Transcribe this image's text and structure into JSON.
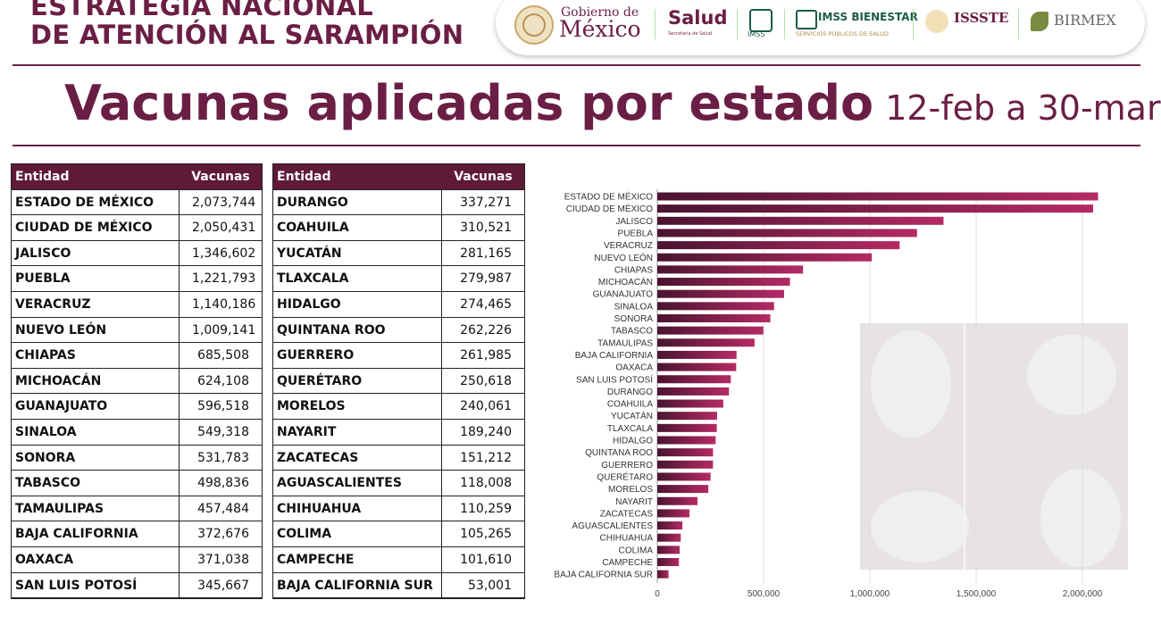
{
  "header": {
    "title_line1": "ESTRATEGIA NACIONAL",
    "title_line2": "DE ATENCIÓN AL SARAMPIÓN",
    "logos": {
      "gobierno_small": "Gobierno de",
      "gobierno_big": "México",
      "salud": "Salud",
      "salud_sub": "Secretaría de Salud",
      "imss": "IMSS",
      "imss_bienestar": "IMSS BIENESTAR",
      "imss_bienestar_sub": "SERVICIOS PÚBLICOS DE SALUD",
      "issste": "ISSSTE",
      "birmex": "BIRMEX"
    }
  },
  "title": "Vacunas aplicadas por estado",
  "subtitle": "12-feb a 30-mar",
  "tables": [
    {
      "columns": [
        "Entidad",
        "Vacunas"
      ],
      "rows": [
        [
          "ESTADO DE MÉXICO",
          "2,073,744"
        ],
        [
          "CIUDAD DE MÉXICO",
          "2,050,431"
        ],
        [
          "JALISCO",
          "1,346,602"
        ],
        [
          "PUEBLA",
          "1,221,793"
        ],
        [
          "VERACRUZ",
          "1,140,186"
        ],
        [
          "NUEVO LEÓN",
          "1,009,141"
        ],
        [
          "CHIAPAS",
          "685,508"
        ],
        [
          "MICHOACÁN",
          "624,108"
        ],
        [
          "GUANAJUATO",
          "596,518"
        ],
        [
          "SINALOA",
          "549,318"
        ],
        [
          "SONORA",
          "531,783"
        ],
        [
          "TABASCO",
          "498,836"
        ],
        [
          "TAMAULIPAS",
          "457,484"
        ],
        [
          "BAJA CALIFORNIA",
          "372,676"
        ],
        [
          "OAXACA",
          "371,038"
        ],
        [
          "SAN LUIS POTOSÍ",
          "345,667"
        ]
      ]
    },
    {
      "columns": [
        "Entidad",
        "Vacunas"
      ],
      "rows": [
        [
          "DURANGO",
          "337,271"
        ],
        [
          "COAHUILA",
          "310,521"
        ],
        [
          "YUCATÁN",
          "281,165"
        ],
        [
          "TLAXCALA",
          "279,987"
        ],
        [
          "HIDALGO",
          "274,465"
        ],
        [
          "QUINTANA ROO",
          "262,226"
        ],
        [
          "GUERRERO",
          "261,985"
        ],
        [
          "QUERÉTARO",
          "250,618"
        ],
        [
          "MORELOS",
          "240,061"
        ],
        [
          "NAYARIT",
          "189,240"
        ],
        [
          "ZACATECAS",
          "151,212"
        ],
        [
          "AGUASCALIENTES",
          "118,008"
        ],
        [
          "CHIHUAHUA",
          "110,259"
        ],
        [
          "COLIMA",
          "105,265"
        ],
        [
          "CAMPECHE",
          "101,610"
        ],
        [
          "BAJA CALIFORNIA SUR",
          "53,001"
        ]
      ]
    }
  ],
  "chart_data": {
    "type": "hbar",
    "categories": [
      "ESTADO DE MÉXICO",
      "CIUDAD DE MÉXICO",
      "JALISCO",
      "PUEBLA",
      "VERACRUZ",
      "NUEVO LEÓN",
      "CHIAPAS",
      "MICHOACÁN",
      "GUANAJUATO",
      "SINALOA",
      "SONORA",
      "TABASCO",
      "TAMAULIPAS",
      "BAJA CALIFORNIA",
      "OAXACA",
      "SAN LUIS POTOSÍ",
      "DURANGO",
      "COAHUILA",
      "YUCATÁN",
      "TLAXCALA",
      "HIDALGO",
      "QUINTANA ROO",
      "GUERRERO",
      "QUERÉTARO",
      "MORELOS",
      "NAYARIT",
      "ZACATECAS",
      "AGUASCALIENTES",
      "CHIHUAHUA",
      "COLIMA",
      "CAMPECHE",
      "BAJA CALIFORNIA SUR"
    ],
    "values": [
      2073744,
      2050431,
      1346602,
      1221793,
      1140186,
      1009141,
      685508,
      624108,
      596518,
      549318,
      531783,
      498836,
      457484,
      372676,
      371038,
      345667,
      337271,
      310521,
      281165,
      279987,
      274465,
      262226,
      261985,
      250618,
      240061,
      189240,
      151212,
      118008,
      110259,
      105265,
      101610,
      53001
    ],
    "gradient": [
      "#4a1430",
      "#b52a64"
    ],
    "xlim": [
      0,
      2200000
    ],
    "xticks": [
      0,
      {
        "value": 500000,
        "label": "500,000"
      },
      {
        "value": 1000000,
        "label": "1,000,000"
      },
      {
        "value": 1500000,
        "label": "1,500,000"
      },
      {
        "value": 2000000,
        "label": "2,000,000"
      }
    ],
    "grid": true
  }
}
